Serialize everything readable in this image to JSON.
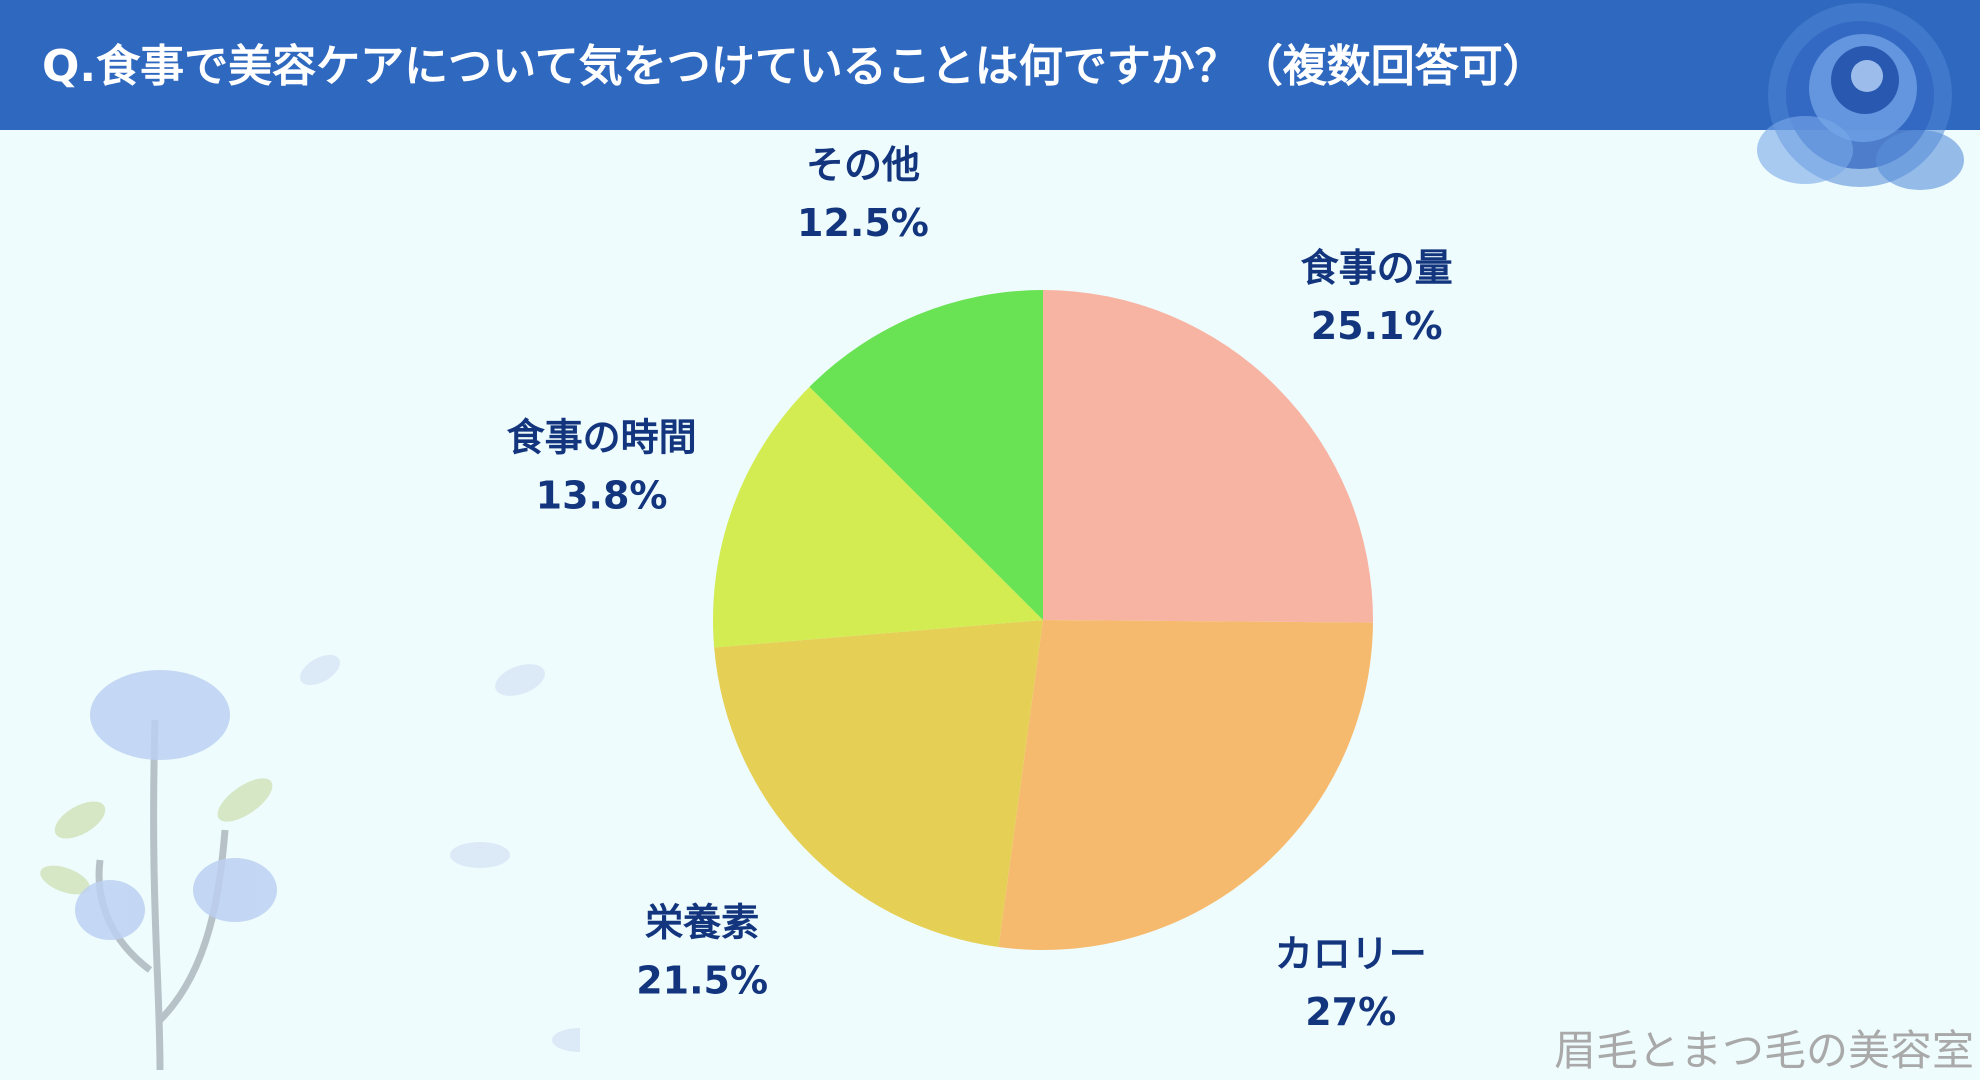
{
  "header": {
    "title": "Q.食事で美容ケアについて気をつけていることは何ですか？（複数回答可）"
  },
  "colors": {
    "header_bg": "#2f68bf",
    "background": "#eefcfd",
    "label_text": "#13357e"
  },
  "chart_data": {
    "type": "pie",
    "title": "Q.食事で美容ケアについて気をつけていることは何ですか？（複数回答可）",
    "start": "12 o'clock, clockwise",
    "slices": [
      {
        "label": "食事の量",
        "value": 25.1,
        "value_label": "25.1%",
        "color": "#f8b4a3"
      },
      {
        "label": "カロリー",
        "value": 27,
        "value_label": "27%",
        "color": "#f6ba6f"
      },
      {
        "label": "栄養素",
        "value": 21.5,
        "value_label": "21.5%",
        "color": "#e6cf55"
      },
      {
        "label": "食事の時間",
        "value": 13.8,
        "value_label": "13.8%",
        "color": "#d3ec52"
      },
      {
        "label": "その他",
        "value": 12.5,
        "value_label": "12.5%",
        "color": "#69e253"
      }
    ]
  },
  "watermark": "眉毛とまつ毛の美容室",
  "decorations": {
    "top_right": "blue-rose-illustration",
    "bottom_left": "blue-rose-stem-illustration"
  }
}
